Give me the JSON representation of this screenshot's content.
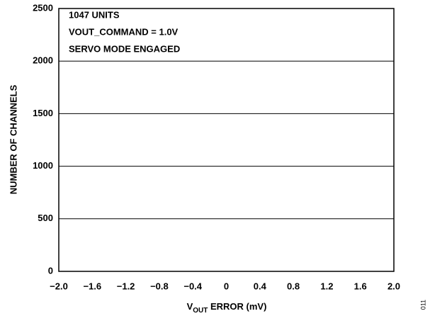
{
  "chart_data": {
    "type": "histogram",
    "annotations": [
      "1047 UNITS",
      "VOUT_COMMAND = 1.0V",
      "SERVO MODE ENGAGED"
    ],
    "xlabel": [
      "V",
      "OUT",
      " ERROR (mV)"
    ],
    "ylabel": "NUMBER OF CHANNELS",
    "figure_id": "011",
    "bins": [
      -2.0,
      -1.6,
      -1.2,
      -0.8,
      -0.4,
      0,
      0.4,
      0.8,
      1.2,
      1.6,
      2.0
    ],
    "counts": [
      0,
      0,
      0,
      0,
      0,
      0,
      0,
      0,
      0,
      0
    ],
    "color": "#8c0a2e",
    "xlim": [
      -2.0,
      2.0
    ],
    "xticks": [
      {
        "value": -2.0,
        "label": "−2.0"
      },
      {
        "value": -1.6,
        "label": "−1.6"
      },
      {
        "value": -1.2,
        "label": "−1.2"
      },
      {
        "value": -0.8,
        "label": "−0.8"
      },
      {
        "value": -0.4,
        "label": "−0.4"
      },
      0,
      0.4,
      0.8,
      1.2,
      1.6,
      {
        "value": 2.0,
        "label": "2.0"
      }
    ],
    "ylim": [
      0,
      2500
    ],
    "yticks": [
      0,
      500,
      1000,
      1500,
      2000,
      2500
    ],
    "grid": true
  }
}
